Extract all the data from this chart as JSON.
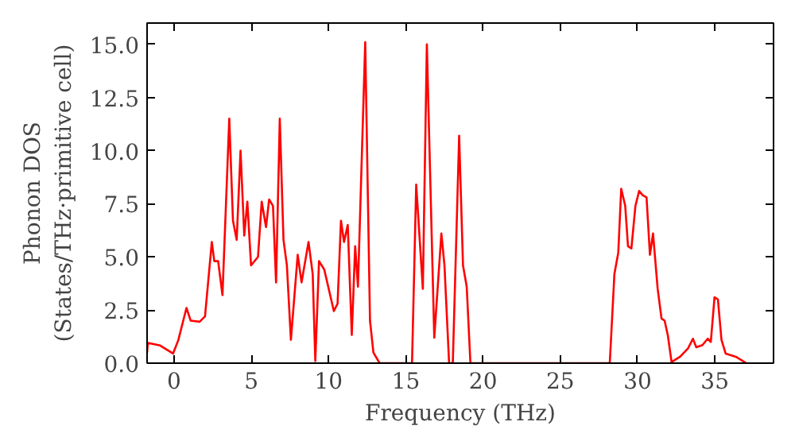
{
  "chart_data": {
    "type": "line",
    "xlabel": "Frequency (THz)",
    "ylabel": "Phonon DOS\n(States/THz·primitive cell)",
    "x": [
      -1.75,
      -1.7,
      -0.9,
      -0.07,
      0.27,
      0.8,
      1.07,
      1.65,
      2.0,
      2.44,
      2.6,
      2.85,
      3.13,
      3.57,
      3.81,
      4.05,
      4.3,
      4.54,
      4.74,
      4.98,
      5.43,
      5.67,
      5.95,
      6.15,
      6.4,
      6.6,
      6.84,
      7.08,
      7.3,
      7.56,
      8.0,
      8.25,
      8.7,
      8.97,
      9.14,
      9.38,
      9.72,
      10.34,
      10.58,
      10.8,
      11.0,
      11.24,
      11.5,
      11.72,
      11.9,
      12.37,
      12.68,
      12.9,
      13.3,
      15.4,
      15.67,
      16.1,
      16.36,
      16.84,
      17.3,
      17.5,
      17.8,
      18.04,
      18.45,
      18.7,
      18.94,
      19.18,
      28.2,
      28.5,
      28.75,
      28.94,
      29.2,
      29.38,
      29.6,
      29.86,
      30.1,
      30.33,
      30.58,
      30.8,
      31.0,
      31.3,
      31.55,
      31.75,
      31.96,
      32.2,
      32.75,
      33.27,
      33.58,
      33.8,
      34.2,
      34.54,
      34.74,
      34.98,
      35.2,
      35.43,
      35.7,
      36.36,
      37.04
    ],
    "series": [
      {
        "color": "#ff0000",
        "values": [
          0.5,
          0.95,
          0.83,
          0.45,
          1.08,
          2.6,
          2.0,
          1.95,
          2.2,
          5.7,
          4.8,
          4.8,
          3.2,
          11.5,
          6.7,
          5.8,
          10.0,
          6.0,
          7.6,
          4.6,
          5.0,
          7.6,
          6.4,
          7.7,
          7.4,
          3.8,
          11.5,
          5.8,
          4.6,
          1.1,
          5.1,
          3.8,
          5.7,
          4.2,
          0.1,
          4.8,
          4.4,
          2.45,
          2.8,
          6.7,
          5.7,
          6.5,
          1.33,
          5.5,
          3.6,
          15.1,
          2.0,
          0.5,
          0,
          0,
          8.4,
          3.5,
          15.0,
          1.2,
          6.1,
          4.6,
          0,
          0,
          10.7,
          4.6,
          3.6,
          0,
          0,
          4.2,
          5.2,
          8.2,
          7.4,
          5.5,
          5.4,
          7.4,
          8.1,
          7.9,
          7.8,
          5.1,
          6.1,
          3.5,
          2.1,
          2.0,
          1.3,
          0.05,
          0.3,
          0.7,
          1.15,
          0.75,
          0.85,
          1.15,
          1.0,
          3.1,
          3.0,
          1.1,
          0.45,
          0.3,
          0
        ]
      }
    ],
    "xlim": [
      -1.75,
      38.8
    ],
    "ylim": [
      0,
      16
    ],
    "xticks": [
      0,
      5,
      10,
      15,
      20,
      25,
      30,
      35
    ],
    "yticks": [
      {
        "value": 0,
        "label": "0.0"
      },
      {
        "value": 2.5,
        "label": "2.5"
      },
      {
        "value": 5,
        "label": "5.0"
      },
      {
        "value": 7.5,
        "label": "7.5"
      },
      {
        "value": 10,
        "label": "10.0"
      },
      {
        "value": 12.5,
        "label": "12.5"
      },
      {
        "value": 15,
        "label": "15.0"
      }
    ],
    "grid": false,
    "marker": "none",
    "line_style": "solid"
  }
}
